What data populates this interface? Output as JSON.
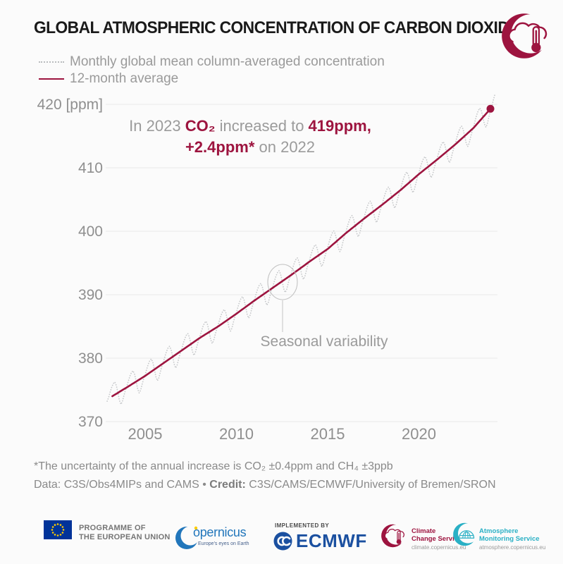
{
  "title": "GLOBAL ATMOSPHERIC CONCENTRATION OF CARBON DIOXIDE",
  "legend": {
    "monthly_label": "Monthly global mean column-averaged concentration",
    "average_label": "12-month average"
  },
  "annotation": {
    "line1_prefix": "In 2023 ",
    "line1_co2": "CO₂",
    "line1_mid": " increased to ",
    "line1_value": "419ppm,",
    "line2_increase": "+2.4ppm*",
    "line2_suffix": " on 2022"
  },
  "callout": {
    "label": "Seasonal variability"
  },
  "footnote": "*The uncertainty of the annual increase is CO₂ ±0.4ppm and CH₄ ±3ppb",
  "credit": {
    "data_label": "Data:",
    "data_value": " C3S/Obs4MIPs and CAMS ",
    "separator": "• ",
    "credit_label": "Credit:",
    "credit_value": " C3S/CAMS/ECMWF/University of Bremen/SRON"
  },
  "footer_logos": {
    "eu": {
      "line1": "PROGRAMME OF",
      "line2": "THE EUROPEAN UNION"
    },
    "copernicus": {
      "wordmark": "opernicus",
      "tagline": "Europe's eyes on Earth"
    },
    "ecmwf": {
      "implemented_by": "IMPLEMENTED BY",
      "name": "ECMWF"
    },
    "c3s": {
      "name_line1": "Climate",
      "name_line2": "Change Service",
      "url": "climate.copernicus.eu"
    },
    "ams": {
      "name_line1": "Atmosphere",
      "name_line2": "Monitoring Service",
      "url": "atmosphere.copernicus.eu"
    }
  },
  "colors": {
    "accent_red": "#9d143f",
    "monthly_dotted_gray": "#c6c8ca",
    "grid_gray": "#e9e9e9",
    "axis_gray": "#8f8f8f",
    "ecmwf_blue": "#1b50a0",
    "copernicus_blue": "#2176bb",
    "ams_teal": "#2ab0c5",
    "eu_blue": "#003399",
    "eu_star_yellow": "#ffcc00"
  },
  "chart_data": {
    "type": "line",
    "title": "GLOBAL ATMOSPHERIC CONCENTRATION OF CARBON DIOXIDE",
    "unit": "ppm",
    "xlim": [
      2002.9,
      2024.2
    ],
    "ylim": [
      370,
      421.5
    ],
    "yticks": [
      420,
      410,
      400,
      390,
      380,
      370
    ],
    "ytick_labels": [
      "420 [ppm]",
      "410",
      "400",
      "390",
      "380",
      "370"
    ],
    "xticks": [
      2005,
      2010,
      2015,
      2020
    ],
    "grid": "horizontal",
    "legend_position": "top-left",
    "series": [
      {
        "name": "Monthly global mean column-averaged concentration",
        "style": "dotted",
        "derivation": "12-month average interpolated monthly + seasonal_anomaly_ppm",
        "x_start": 2002.92,
        "x_end": 2024.2
      },
      {
        "name": "12-month average",
        "style": "solid",
        "points": [
          [
            2003.2,
            374.0
          ],
          [
            2004,
            375.4
          ],
          [
            2005,
            377.2
          ],
          [
            2006,
            379.2
          ],
          [
            2007,
            381.2
          ],
          [
            2008,
            383.2
          ],
          [
            2009,
            385.0
          ],
          [
            2010,
            387.0
          ],
          [
            2011,
            389.1
          ],
          [
            2012,
            391.1
          ],
          [
            2013,
            393.1
          ],
          [
            2014,
            395.2
          ],
          [
            2015,
            397.2
          ],
          [
            2016,
            399.7
          ],
          [
            2017,
            402.0
          ],
          [
            2018,
            404.2
          ],
          [
            2019,
            406.5
          ],
          [
            2020,
            409.0
          ],
          [
            2021,
            411.3
          ],
          [
            2022,
            413.7
          ],
          [
            2023,
            416.3
          ],
          [
            2023.92,
            419.3
          ]
        ]
      }
    ],
    "seasonal_anomaly_ppm": [
      0.2,
      0.9,
      1.5,
      1.9,
      2.0,
      1.3,
      0.1,
      -1.3,
      -2.1,
      -1.8,
      -1.0,
      -0.3
    ],
    "end_point": {
      "year": 2023.92,
      "value": 419.3
    },
    "annotations": [
      "In 2023 CO₂ increased to 419ppm, +2.4ppm* on 2022",
      "Seasonal variability"
    ]
  }
}
